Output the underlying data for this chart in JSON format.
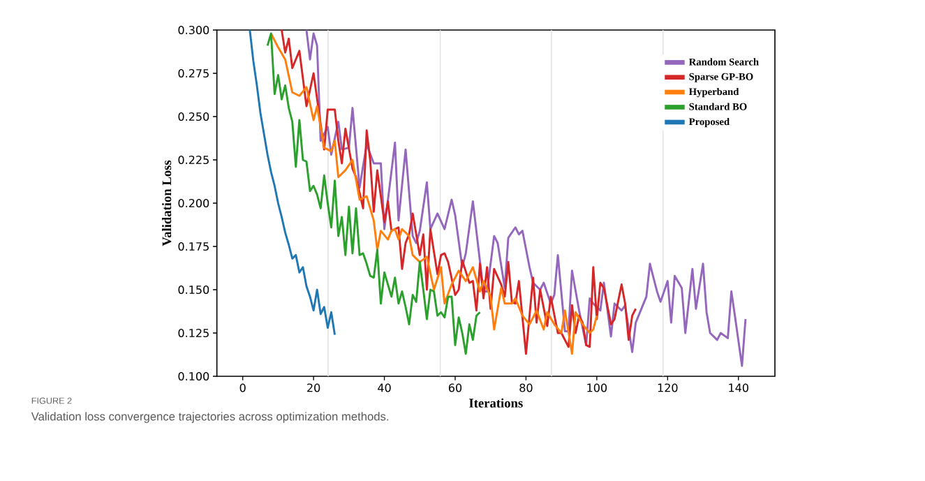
{
  "chart_data": {
    "type": "line",
    "xlabel": "Iterations",
    "ylabel": "Validation Loss",
    "xlim": [
      -7.3,
      150.3
    ],
    "ylim": [
      0.1,
      0.3
    ],
    "xticks": [
      0,
      20,
      40,
      60,
      80,
      100,
      120,
      140
    ],
    "yticks": [
      {
        "value": 0.1,
        "label": "0.100"
      },
      {
        "value": 0.125,
        "label": "0.125"
      },
      {
        "value": 0.15,
        "label": "0.150"
      },
      {
        "value": 0.175,
        "label": "0.175"
      },
      {
        "value": 0.2,
        "label": "0.200"
      },
      {
        "value": 0.225,
        "label": "0.225"
      },
      {
        "value": 0.25,
        "label": "0.250"
      },
      {
        "value": 0.275,
        "label": "0.275"
      },
      {
        "value": 0.3,
        "label": "0.300"
      }
    ],
    "legend": "top right",
    "ref_lines": [
      {
        "axis": "x",
        "value": 24.1,
        "color": "#e3e3e3"
      },
      {
        "axis": "x",
        "value": 55.8,
        "color": "#e3e3e3"
      },
      {
        "axis": "x",
        "value": 87.2,
        "color": "#e3e3e3"
      },
      {
        "axis": "x",
        "value": 118.7,
        "color": "#e3e3e3"
      }
    ],
    "annotations": [
      "FIGURE 2",
      "Validation loss convergence trajectories across optimization methods."
    ],
    "series": [
      {
        "name": "Random Search",
        "color": "#9467bd",
        "x": [
          18,
          19,
          20,
          21,
          22,
          24,
          25,
          27,
          28,
          30,
          31,
          33,
          35,
          37,
          39,
          40,
          43,
          44,
          46,
          48,
          49,
          50,
          52,
          53,
          55,
          57,
          59,
          60,
          62,
          63,
          65,
          68,
          69,
          71,
          72,
          74,
          75,
          77,
          78,
          79,
          81,
          82,
          84,
          85,
          87,
          88,
          89,
          91,
          92,
          93,
          95,
          97,
          98,
          99,
          101,
          102,
          104,
          105,
          107,
          108,
          110,
          111,
          114,
          115,
          117,
          118,
          120,
          121,
          122,
          124,
          125,
          127,
          128,
          130,
          131,
          132,
          134,
          135,
          137,
          138,
          139,
          141,
          142
        ],
        "values": [
          0.3,
          0.283,
          0.298,
          0.291,
          0.236,
          0.244,
          0.228,
          0.247,
          0.231,
          0.232,
          0.255,
          0.209,
          0.234,
          0.223,
          0.223,
          0.185,
          0.235,
          0.19,
          0.231,
          0.181,
          0.177,
          0.184,
          0.212,
          0.185,
          0.194,
          0.185,
          0.202,
          0.193,
          0.163,
          0.171,
          0.201,
          0.149,
          0.149,
          0.181,
          0.177,
          0.151,
          0.18,
          0.186,
          0.182,
          0.184,
          0.163,
          0.154,
          0.15,
          0.154,
          0.142,
          0.147,
          0.17,
          0.126,
          0.126,
          0.161,
          0.138,
          0.118,
          0.145,
          0.142,
          0.138,
          0.154,
          0.123,
          0.142,
          0.138,
          0.141,
          0.114,
          0.131,
          0.146,
          0.165,
          0.149,
          0.143,
          0.155,
          0.131,
          0.158,
          0.151,
          0.125,
          0.162,
          0.139,
          0.165,
          0.137,
          0.125,
          0.121,
          0.125,
          0.122,
          0.149,
          0.135,
          0.106,
          0.133
        ]
      },
      {
        "name": "Sparse GP-BO",
        "color": "#d62728",
        "x": [
          11,
          12,
          13,
          14,
          16,
          18,
          20,
          23,
          24,
          26,
          27,
          28,
          29,
          31,
          32,
          34,
          35,
          36,
          37,
          38,
          39,
          40,
          41,
          42,
          44,
          45,
          46,
          47,
          48,
          50,
          51,
          52,
          53,
          55,
          56,
          57,
          58,
          60,
          61,
          62,
          64,
          65,
          66,
          67,
          68,
          69,
          70,
          71,
          73,
          74,
          75,
          76,
          77,
          78,
          80,
          82,
          83,
          84,
          86,
          87,
          89,
          90,
          92,
          93,
          94,
          95,
          96,
          97,
          98,
          99,
          100,
          101,
          102,
          104,
          105,
          107,
          108,
          109,
          110,
          111
        ],
        "values": [
          0.3,
          0.287,
          0.295,
          0.278,
          0.288,
          0.256,
          0.275,
          0.231,
          0.254,
          0.254,
          0.236,
          0.223,
          0.243,
          0.22,
          0.215,
          0.197,
          0.242,
          0.225,
          0.195,
          0.219,
          0.204,
          0.189,
          0.201,
          0.184,
          0.186,
          0.162,
          0.177,
          0.182,
          0.194,
          0.17,
          0.182,
          0.15,
          0.185,
          0.159,
          0.17,
          0.171,
          0.166,
          0.147,
          0.15,
          0.167,
          0.154,
          0.155,
          0.138,
          0.165,
          0.145,
          0.163,
          0.139,
          0.162,
          0.153,
          0.146,
          0.166,
          0.143,
          0.142,
          0.155,
          0.113,
          0.157,
          0.131,
          0.15,
          0.129,
          0.146,
          0.125,
          0.125,
          0.117,
          0.141,
          0.125,
          0.135,
          0.131,
          0.118,
          0.117,
          0.163,
          0.133,
          0.154,
          0.151,
          0.13,
          0.133,
          0.153,
          0.142,
          0.121,
          0.135,
          0.139
        ]
      },
      {
        "name": "Hyperband",
        "color": "#ff7f0e",
        "x": [
          8,
          10,
          12,
          14,
          16,
          18,
          20,
          21,
          23,
          25,
          26,
          27,
          29,
          31,
          33,
          35,
          37,
          38,
          39,
          41,
          42,
          43,
          44,
          45,
          47,
          48,
          50,
          52,
          54,
          56,
          57,
          59,
          61,
          63,
          65,
          67,
          68,
          70,
          71,
          73,
          74,
          76,
          77,
          79,
          81,
          83,
          85,
          86,
          88,
          90,
          91,
          93,
          94,
          96,
          98,
          99,
          100
        ],
        "values": [
          0.298,
          0.29,
          0.283,
          0.264,
          0.262,
          0.267,
          0.248,
          0.256,
          0.232,
          0.23,
          0.236,
          0.215,
          0.219,
          0.225,
          0.202,
          0.204,
          0.19,
          0.173,
          0.184,
          0.179,
          0.184,
          0.185,
          0.179,
          0.185,
          0.181,
          0.17,
          0.166,
          0.169,
          0.15,
          0.163,
          0.142,
          0.153,
          0.161,
          0.155,
          0.163,
          0.149,
          0.155,
          0.146,
          0.127,
          0.151,
          0.142,
          0.142,
          0.145,
          0.135,
          0.13,
          0.138,
          0.127,
          0.137,
          0.13,
          0.125,
          0.138,
          0.113,
          0.137,
          0.13,
          0.125,
          0.127,
          0.135
        ]
      },
      {
        "name": "Standard BO",
        "color": "#2ca02c",
        "x": [
          7,
          8,
          9,
          10,
          11,
          12,
          13,
          14,
          15,
          16,
          17,
          18,
          19,
          20,
          21,
          22,
          23,
          24,
          25,
          26,
          27,
          28,
          29,
          30,
          31,
          32,
          33,
          34,
          35,
          36,
          37,
          38,
          39,
          40,
          41,
          42,
          43,
          44,
          45,
          46,
          47,
          48,
          49,
          50,
          51,
          52,
          53,
          54,
          55,
          56,
          57,
          58,
          59,
          60,
          61,
          62,
          63,
          64,
          65,
          66,
          67
        ],
        "values": [
          0.291,
          0.298,
          0.263,
          0.274,
          0.26,
          0.268,
          0.255,
          0.247,
          0.221,
          0.248,
          0.225,
          0.224,
          0.207,
          0.21,
          0.205,
          0.197,
          0.216,
          0.2,
          0.186,
          0.213,
          0.181,
          0.192,
          0.17,
          0.198,
          0.171,
          0.197,
          0.17,
          0.171,
          0.165,
          0.158,
          0.157,
          0.173,
          0.142,
          0.16,
          0.153,
          0.146,
          0.157,
          0.142,
          0.149,
          0.14,
          0.13,
          0.147,
          0.143,
          0.166,
          0.15,
          0.133,
          0.15,
          0.149,
          0.135,
          0.137,
          0.134,
          0.146,
          0.146,
          0.118,
          0.134,
          0.125,
          0.113,
          0.13,
          0.121,
          0.135,
          0.137
        ]
      },
      {
        "name": "Proposed",
        "color": "#1f77b4",
        "x": [
          2,
          3,
          4,
          5,
          6,
          7,
          8,
          9,
          10,
          11,
          12,
          13,
          14,
          15,
          16,
          17,
          18,
          19,
          20,
          21,
          22,
          23,
          24,
          25,
          26
        ],
        "values": [
          0.3,
          0.282,
          0.268,
          0.252,
          0.24,
          0.228,
          0.218,
          0.21,
          0.2,
          0.192,
          0.183,
          0.176,
          0.168,
          0.17,
          0.16,
          0.163,
          0.152,
          0.146,
          0.138,
          0.15,
          0.136,
          0.14,
          0.128,
          0.137,
          0.124
        ]
      }
    ]
  }
}
